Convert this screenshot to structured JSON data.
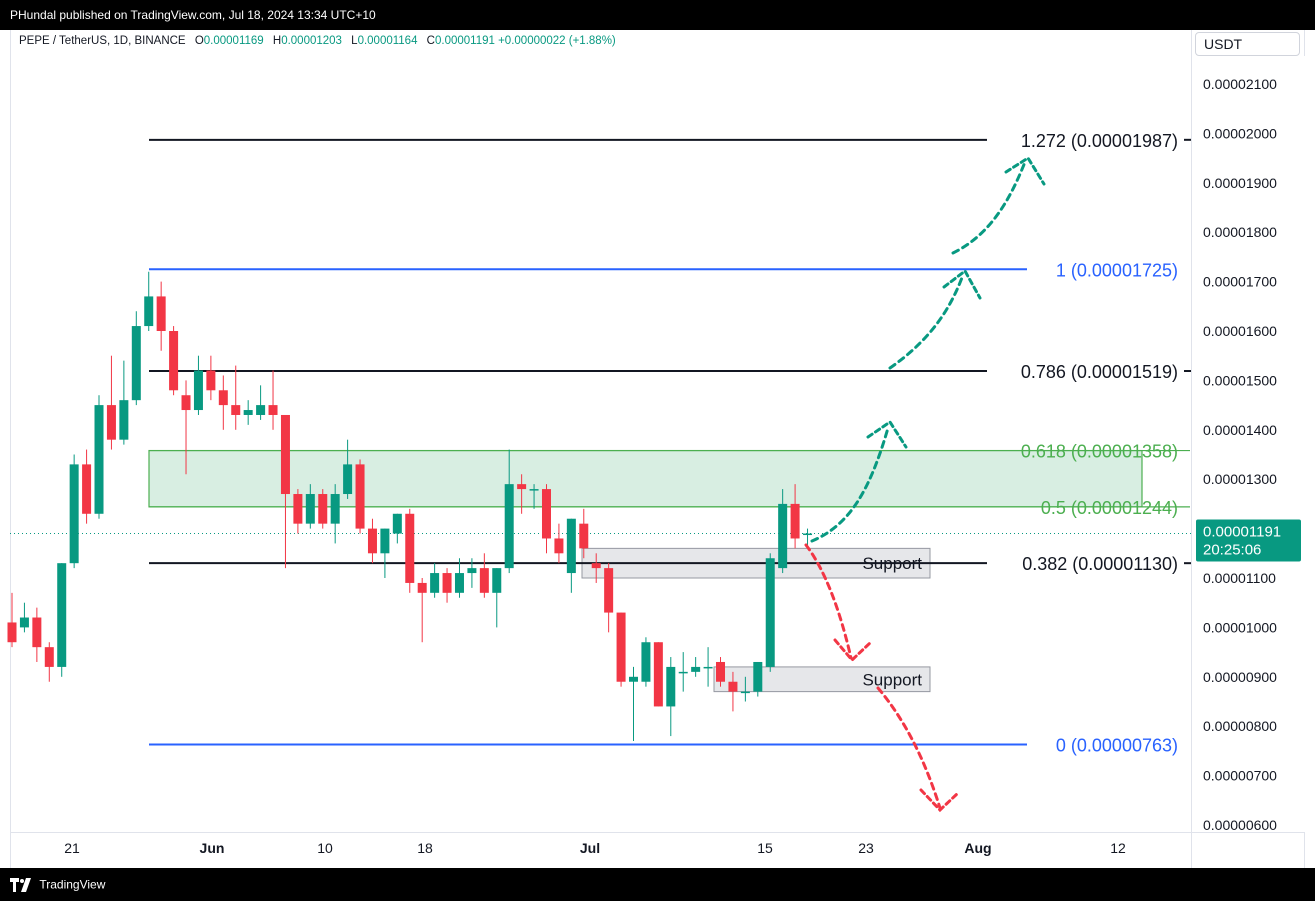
{
  "header": {
    "publisher_text": "PHundal published on TradingView.com, Jul 18, 2024 13:34 UTC+10"
  },
  "footer": {
    "brand": "TradingView",
    "logo_icon": "tradingview-logo-icon"
  },
  "symbol": {
    "title": "PEPE / TetherUS, 1D, BINANCE",
    "o_label": "O",
    "o_value": "0.00001169",
    "h_label": "H",
    "h_value": "0.00001203",
    "l_label": "L",
    "l_value": "0.00001164",
    "c_label": "C",
    "c_value": "0.00001191",
    "change": "+0.00000022 (+1.88%)"
  },
  "price_axis": {
    "currency": "USDT",
    "last_price": "0.00001191",
    "countdown": "20:25:06"
  },
  "colors": {
    "up": "#089981",
    "down": "#f23645",
    "fib_blue": "#2962ff",
    "fib_green": "#4caf50",
    "zone_fill": "#d8eee2"
  },
  "chart_data": {
    "type": "candlestick",
    "title": "",
    "xlabel": "",
    "ylabel": "",
    "ylim": [
      5.9e-06,
      2.24e-05
    ],
    "y_ticks": [
      "0.00000600",
      "0.00000700",
      "0.00000800",
      "0.00000900",
      "0.00001000",
      "0.00001100",
      "0.00001200",
      "0.00001300",
      "0.00001400",
      "0.00001500",
      "0.00001600",
      "0.00001700",
      "0.00001800",
      "0.00001900",
      "0.00002000",
      "0.00002100"
    ],
    "x_ticks": [
      "21",
      "Jun",
      "10",
      "18",
      "Jul",
      "15",
      "23",
      "Aug",
      "12"
    ],
    "grid": false,
    "candles": [
      {
        "o": 10.1,
        "h": 10.7,
        "l": 9.6,
        "c": 9.7
      },
      {
        "o": 10.0,
        "h": 10.5,
        "l": 9.9,
        "c": 10.2
      },
      {
        "o": 10.2,
        "h": 10.4,
        "l": 9.3,
        "c": 9.6
      },
      {
        "o": 9.6,
        "h": 9.7,
        "l": 8.9,
        "c": 9.2
      },
      {
        "o": 9.2,
        "h": 11.3,
        "l": 9.0,
        "c": 11.3
      },
      {
        "o": 11.3,
        "h": 13.5,
        "l": 11.2,
        "c": 13.3
      },
      {
        "o": 13.3,
        "h": 13.6,
        "l": 12.1,
        "c": 12.3
      },
      {
        "o": 12.3,
        "h": 14.7,
        "l": 12.2,
        "c": 14.5
      },
      {
        "o": 14.5,
        "h": 15.5,
        "l": 13.6,
        "c": 13.8
      },
      {
        "o": 13.8,
        "h": 15.4,
        "l": 13.7,
        "c": 14.6
      },
      {
        "o": 14.6,
        "h": 16.4,
        "l": 14.5,
        "c": 16.1
      },
      {
        "o": 16.1,
        "h": 17.2,
        "l": 16.0,
        "c": 16.7
      },
      {
        "o": 16.7,
        "h": 17.0,
        "l": 15.6,
        "c": 16.0
      },
      {
        "o": 16.0,
        "h": 16.1,
        "l": 14.7,
        "c": 14.8
      },
      {
        "o": 14.7,
        "h": 15.0,
        "l": 13.1,
        "c": 14.4
      },
      {
        "o": 14.4,
        "h": 15.5,
        "l": 14.3,
        "c": 15.2
      },
      {
        "o": 15.2,
        "h": 15.5,
        "l": 14.6,
        "c": 14.8
      },
      {
        "o": 14.8,
        "h": 15.1,
        "l": 14.0,
        "c": 14.5
      },
      {
        "o": 14.5,
        "h": 15.3,
        "l": 14.0,
        "c": 14.3
      },
      {
        "o": 14.3,
        "h": 14.6,
        "l": 14.1,
        "c": 14.4
      },
      {
        "o": 14.3,
        "h": 14.9,
        "l": 14.2,
        "c": 14.5
      },
      {
        "o": 14.5,
        "h": 15.2,
        "l": 14.0,
        "c": 14.3
      },
      {
        "o": 14.3,
        "h": 14.3,
        "l": 11.2,
        "c": 12.7
      },
      {
        "o": 12.7,
        "h": 12.8,
        "l": 11.9,
        "c": 12.1
      },
      {
        "o": 12.1,
        "h": 12.9,
        "l": 12.0,
        "c": 12.7
      },
      {
        "o": 12.7,
        "h": 12.8,
        "l": 12.0,
        "c": 12.1
      },
      {
        "o": 12.1,
        "h": 12.9,
        "l": 11.7,
        "c": 12.7
      },
      {
        "o": 12.7,
        "h": 13.8,
        "l": 12.6,
        "c": 13.3
      },
      {
        "o": 13.3,
        "h": 13.4,
        "l": 11.9,
        "c": 12.0
      },
      {
        "o": 12.0,
        "h": 12.2,
        "l": 11.3,
        "c": 11.5
      },
      {
        "o": 11.5,
        "h": 12.0,
        "l": 11.0,
        "c": 12.0
      },
      {
        "o": 11.9,
        "h": 12.3,
        "l": 11.7,
        "c": 12.3
      },
      {
        "o": 12.3,
        "h": 12.4,
        "l": 10.7,
        "c": 10.9
      },
      {
        "o": 10.9,
        "h": 11.0,
        "l": 9.7,
        "c": 10.7
      },
      {
        "o": 10.7,
        "h": 11.3,
        "l": 10.6,
        "c": 11.1
      },
      {
        "o": 11.1,
        "h": 11.2,
        "l": 10.5,
        "c": 10.7
      },
      {
        "o": 10.7,
        "h": 11.4,
        "l": 10.6,
        "c": 11.1
      },
      {
        "o": 11.1,
        "h": 11.4,
        "l": 10.8,
        "c": 11.2
      },
      {
        "o": 11.2,
        "h": 11.5,
        "l": 10.6,
        "c": 10.7
      },
      {
        "o": 10.7,
        "h": 11.2,
        "l": 10.0,
        "c": 11.2
      },
      {
        "o": 11.2,
        "h": 13.6,
        "l": 11.1,
        "c": 12.9
      },
      {
        "o": 12.9,
        "h": 13.1,
        "l": 12.3,
        "c": 12.8
      },
      {
        "o": 12.8,
        "h": 12.9,
        "l": 12.4,
        "c": 12.8
      },
      {
        "o": 12.8,
        "h": 12.9,
        "l": 11.5,
        "c": 11.8
      },
      {
        "o": 11.8,
        "h": 12.1,
        "l": 11.3,
        "c": 11.5
      },
      {
        "o": 11.1,
        "h": 12.2,
        "l": 10.7,
        "c": 12.2
      },
      {
        "o": 12.1,
        "h": 12.4,
        "l": 11.4,
        "c": 11.6
      },
      {
        "o": 11.3,
        "h": 11.5,
        "l": 10.9,
        "c": 11.2
      },
      {
        "o": 11.2,
        "h": 11.3,
        "l": 9.9,
        "c": 10.3
      },
      {
        "o": 10.3,
        "h": 10.3,
        "l": 8.8,
        "c": 8.9
      },
      {
        "o": 8.9,
        "h": 9.2,
        "l": 7.7,
        "c": 9.0
      },
      {
        "o": 8.9,
        "h": 9.8,
        "l": 8.8,
        "c": 9.7
      },
      {
        "o": 9.7,
        "h": 9.7,
        "l": 8.4,
        "c": 8.4
      },
      {
        "o": 8.4,
        "h": 9.4,
        "l": 7.8,
        "c": 9.2
      },
      {
        "o": 9.1,
        "h": 9.5,
        "l": 8.7,
        "c": 9.1
      },
      {
        "o": 9.1,
        "h": 9.4,
        "l": 9.0,
        "c": 9.2
      },
      {
        "o": 9.2,
        "h": 9.6,
        "l": 8.8,
        "c": 9.2
      },
      {
        "o": 9.3,
        "h": 9.4,
        "l": 8.8,
        "c": 8.9
      },
      {
        "o": 8.9,
        "h": 9.1,
        "l": 8.3,
        "c": 8.7
      },
      {
        "o": 8.7,
        "h": 9.0,
        "l": 8.5,
        "c": 8.7
      },
      {
        "o": 8.7,
        "h": 9.3,
        "l": 8.6,
        "c": 9.3
      },
      {
        "o": 9.2,
        "h": 11.5,
        "l": 9.1,
        "c": 11.4
      },
      {
        "o": 11.2,
        "h": 12.8,
        "l": 11.1,
        "c": 12.5
      },
      {
        "o": 12.5,
        "h": 12.9,
        "l": 11.6,
        "c": 11.8
      },
      {
        "o": 11.9,
        "h": 12.0,
        "l": 11.6,
        "c": 11.9
      }
    ],
    "fib_levels": [
      {
        "label": "0 (0.00000763)",
        "value": 7.63,
        "color": "#2962ff"
      },
      {
        "label": "0.382 (0.00001130)",
        "value": 11.3,
        "color": "#131722"
      },
      {
        "label": "0.5 (0.00001244)",
        "value": 12.44,
        "color": "#4caf50"
      },
      {
        "label": "0.618 (0.00001358)",
        "value": 13.58,
        "color": "#4caf50"
      },
      {
        "label": "0.786 (0.00001519)",
        "value": 15.19,
        "color": "#131722"
      },
      {
        "label": "1 (0.00001725)",
        "value": 17.25,
        "color": "#2962ff"
      },
      {
        "label": "1.272 (0.00001987)",
        "value": 19.87,
        "color": "#131722"
      }
    ],
    "support_zones": [
      {
        "label": "Support",
        "top": 11.6,
        "bottom": 11.0
      },
      {
        "label": "Support",
        "top": 9.2,
        "bottom": 8.7
      }
    ]
  }
}
